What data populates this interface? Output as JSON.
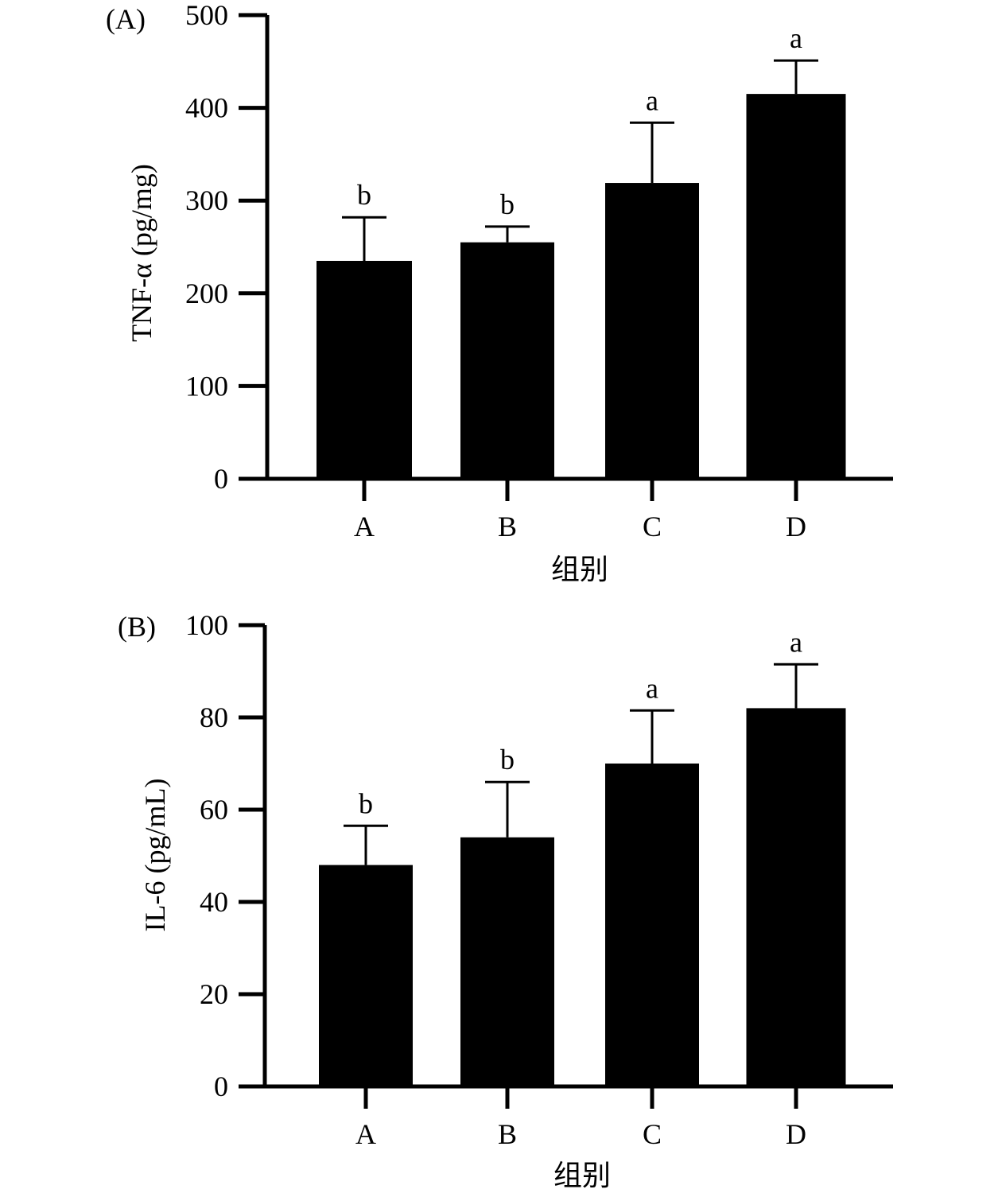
{
  "chart_data": [
    {
      "type": "bar",
      "panel_label": "(A)",
      "ylabel": "TNF-α (pg/mg)",
      "xlabel": "组别",
      "categories": [
        "A",
        "B",
        "C",
        "D"
      ],
      "values": [
        235,
        255,
        319,
        415
      ],
      "error_upper": [
        282,
        272,
        384,
        451
      ],
      "significance": [
        "b",
        "b",
        "a",
        "a"
      ],
      "ylim": [
        0,
        500
      ],
      "yticks": [
        "0",
        "100",
        "200",
        "300",
        "400",
        "500"
      ],
      "grid": false,
      "bar_color": "#000000"
    },
    {
      "type": "bar",
      "panel_label": "(B)",
      "ylabel": "IL-6 (pg/mL)",
      "xlabel": "组别",
      "categories": [
        "A",
        "B",
        "C",
        "D"
      ],
      "values": [
        48,
        54,
        70,
        82
      ],
      "error_upper": [
        56.5,
        66,
        81.5,
        91.5
      ],
      "significance": [
        "b",
        "b",
        "a",
        "a"
      ],
      "ylim": [
        0,
        100
      ],
      "yticks": [
        "0",
        "20",
        "40",
        "60",
        "80",
        "100"
      ],
      "grid": false,
      "bar_color": "#000000"
    }
  ]
}
